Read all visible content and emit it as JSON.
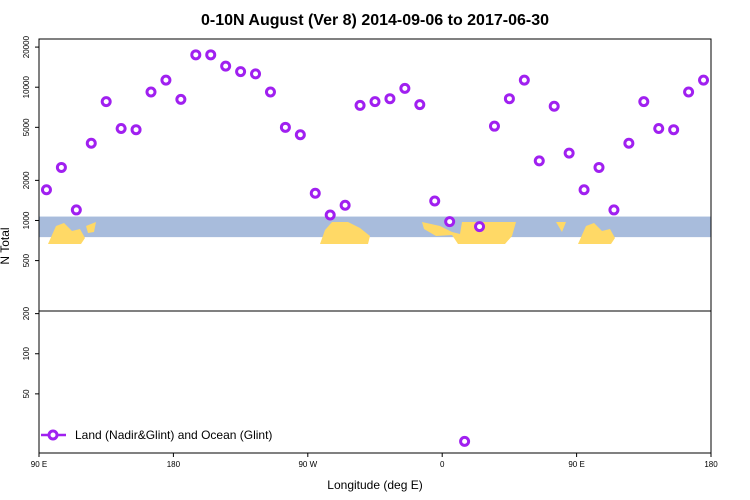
{
  "chart_data": {
    "type": "scatter",
    "title": "0-10N August (Ver 8)   2014-09-06 to 2017-06-30",
    "xlabel": "Longitude (deg E)",
    "ylabel": "N Total",
    "y_scale": "log",
    "xlim": [
      90,
      540
    ],
    "ylim": [
      18,
      23000
    ],
    "x_ticks": [
      {
        "value": 90,
        "label": "90 E"
      },
      {
        "value": 180,
        "label": "180"
      },
      {
        "value": 270,
        "label": "90 W"
      },
      {
        "value": 360,
        "label": "0"
      },
      {
        "value": 450,
        "label": "90 E"
      },
      {
        "value": 540,
        "label": "180"
      }
    ],
    "y_ticks": [
      {
        "value": 50,
        "label": "50"
      },
      {
        "value": 100,
        "label": "100"
      },
      {
        "value": 200,
        "label": "200"
      },
      {
        "value": 500,
        "label": "500"
      },
      {
        "value": 1000,
        "label": "1000"
      },
      {
        "value": 2000,
        "label": "2000"
      },
      {
        "value": 5000,
        "label": "5000"
      },
      {
        "value": 10000,
        "label": "10000"
      },
      {
        "value": 20000,
        "label": "20000"
      }
    ],
    "ocean_band": {
      "y_range": [
        750,
        1070
      ],
      "color": "#a8bcdc"
    },
    "land_color": "#ffd966",
    "series": [
      {
        "name": "Land (Nadir&Glint) and Ocean (Glint)",
        "color": "#a020f0",
        "x": [
          95,
          105,
          115,
          125,
          135,
          145,
          155,
          165,
          175,
          185,
          195,
          205,
          215,
          225,
          235,
          245,
          255,
          265,
          275,
          285,
          295,
          305,
          315,
          325,
          335,
          345,
          355,
          365,
          375,
          385,
          395,
          405,
          415,
          425,
          435,
          445,
          455,
          465,
          475,
          485,
          495,
          505,
          515,
          525,
          535
        ],
        "values": [
          1700,
          2500,
          1200,
          3800,
          7800,
          4900,
          4800,
          9200,
          11300,
          8100,
          17500,
          17500,
          14400,
          13100,
          12600,
          9200,
          5000,
          4400,
          1600,
          1100,
          1300,
          7300,
          7800,
          8200,
          9800,
          7400,
          1400,
          980,
          22,
          900,
          5100,
          8200,
          11300,
          2800,
          7200,
          3200,
          1700,
          2500,
          1200,
          3800,
          7800,
          4900,
          4800,
          9200,
          11300
        ]
      }
    ],
    "legend": {
      "position": "bottom-left"
    }
  }
}
